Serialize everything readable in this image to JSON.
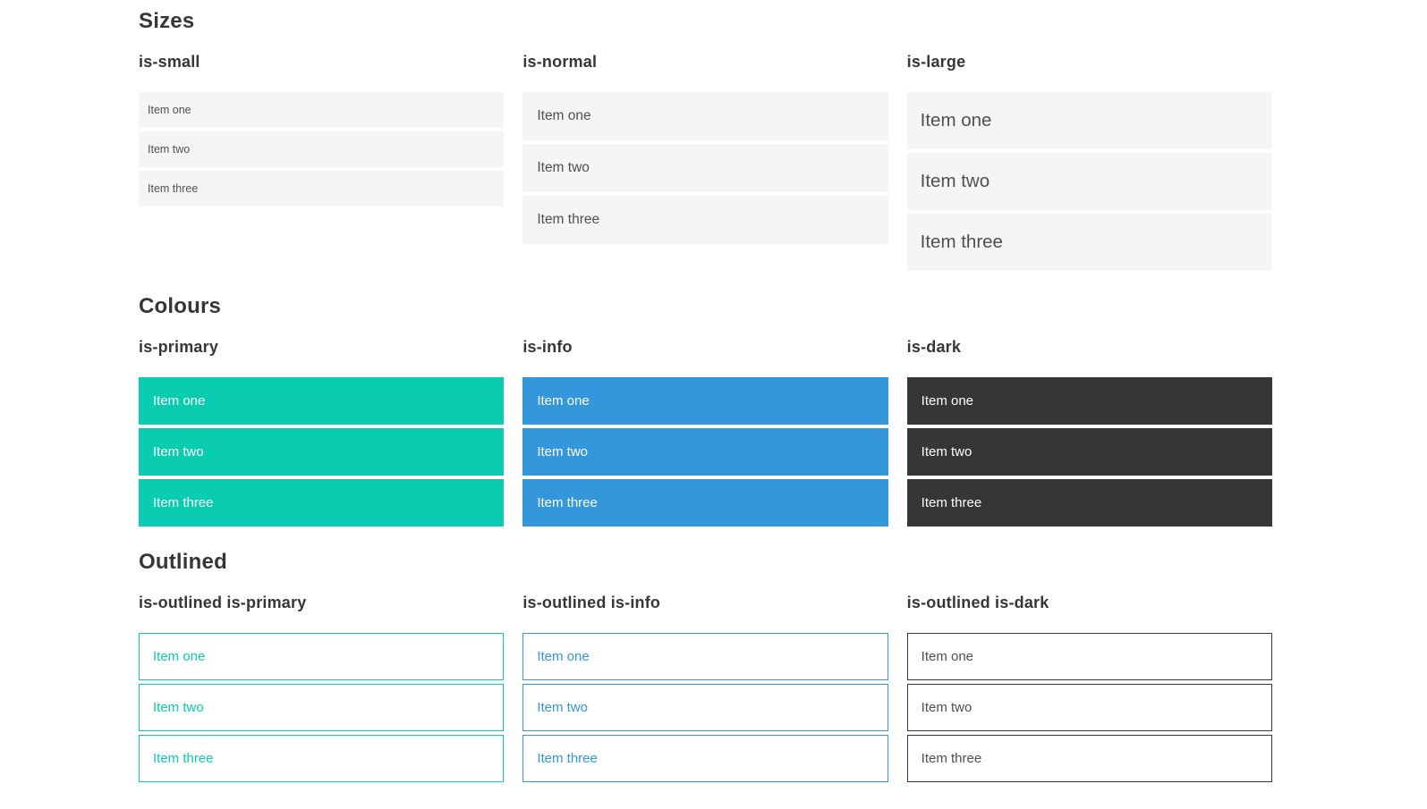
{
  "colors": {
    "primary": "#0accb1",
    "info": "#3496db",
    "dark": "#363636",
    "item_bg": "#f5f5f5",
    "item_text": "#4f4f4f",
    "heading_text": "#363636"
  },
  "sections": [
    {
      "title": "Sizes",
      "groups": [
        {
          "label": "is-small",
          "variant": "size-small",
          "items": [
            "Item one",
            "Item two",
            "Item three"
          ]
        },
        {
          "label": "is-normal",
          "variant": "size-normal",
          "items": [
            "Item one",
            "Item two",
            "Item three"
          ]
        },
        {
          "label": "is-large",
          "variant": "size-large",
          "items": [
            "Item one",
            "Item two",
            "Item three"
          ]
        }
      ]
    },
    {
      "title": "Colours",
      "groups": [
        {
          "label": "is-primary",
          "variant": "color-primary",
          "items": [
            "Item one",
            "Item two",
            "Item three"
          ]
        },
        {
          "label": "is-info",
          "variant": "color-info",
          "items": [
            "Item one",
            "Item two",
            "Item three"
          ]
        },
        {
          "label": "is-dark",
          "variant": "color-dark",
          "items": [
            "Item one",
            "Item two",
            "Item three"
          ]
        }
      ]
    },
    {
      "title": "Outlined",
      "groups": [
        {
          "label": "is-outlined is-primary",
          "variant": "outlined-primary",
          "items": [
            "Item one",
            "Item two",
            "Item three"
          ]
        },
        {
          "label": "is-outlined is-info",
          "variant": "outlined-info",
          "items": [
            "Item one",
            "Item two",
            "Item three"
          ]
        },
        {
          "label": "is-outlined is-dark",
          "variant": "outlined-dark",
          "items": [
            "Item one",
            "Item two",
            "Item three"
          ]
        }
      ]
    }
  ]
}
